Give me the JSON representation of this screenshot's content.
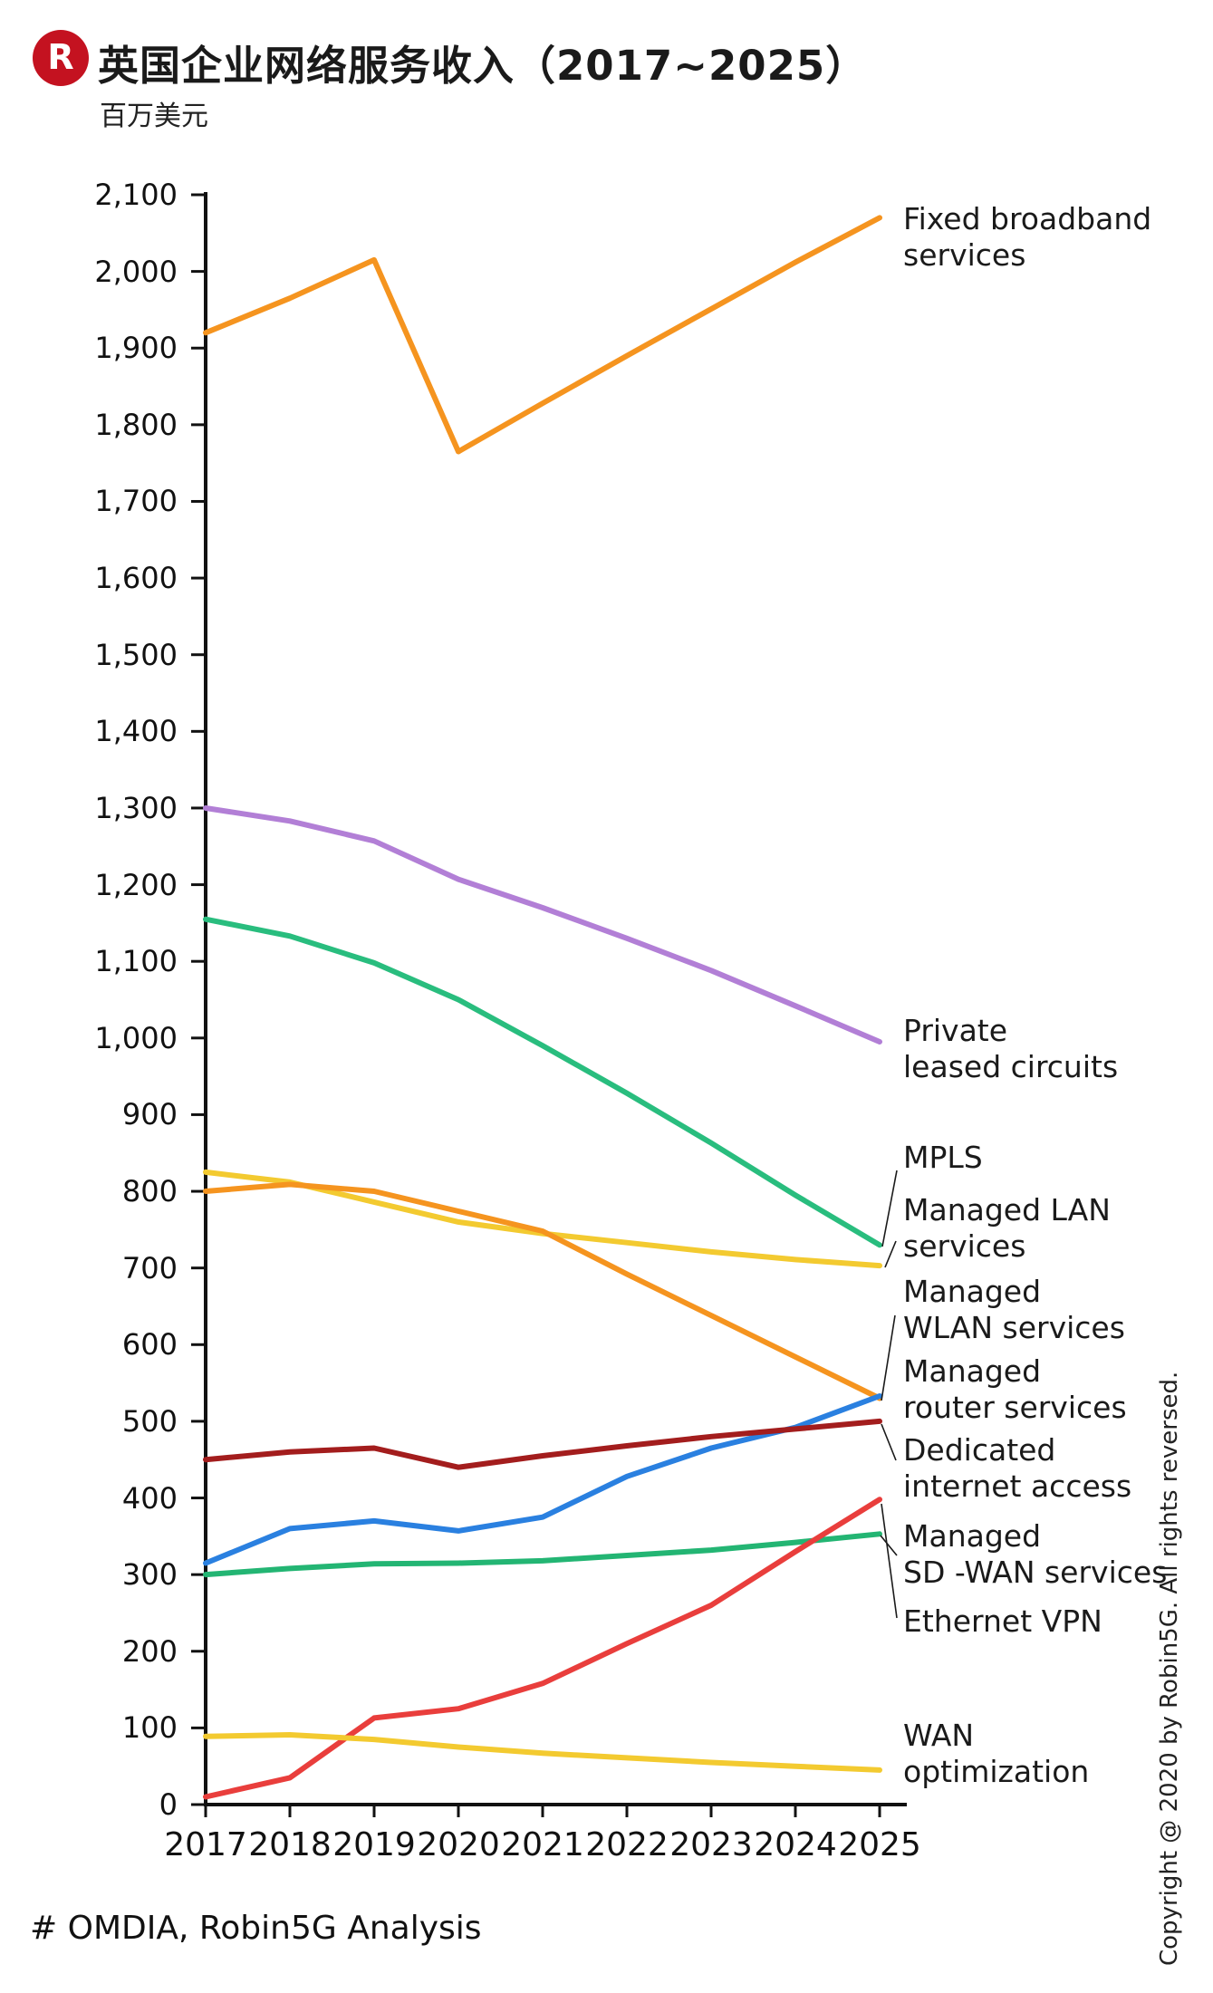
{
  "header": {
    "logo_letter": "R",
    "logo_color": "#C41220",
    "title": "英国企业网络服务收入（2017~2025）",
    "subtitle": "百万美元"
  },
  "source": "# OMDIA, Robin5G Analysis",
  "copyright": "Copyright @ 2020 by Robin5G. All rights reversed.",
  "chart_data": {
    "type": "line",
    "title": "英国企业网络服务收入（2017~2025）",
    "ylabel": "百万美元",
    "x": [
      2017,
      2018,
      2019,
      2020,
      2021,
      2022,
      2023,
      2024,
      2025
    ],
    "ylim": [
      0,
      2100
    ],
    "ytick_step": 100,
    "grid": false,
    "legend_position": "right-annotations",
    "axis_color": "#111111",
    "series": [
      {
        "name": "Fixed broadband services",
        "label_lines": [
          "Fixed broadband",
          "services"
        ],
        "color": "#F5941F",
        "values": [
          1920,
          1965,
          2015,
          1765,
          1828,
          1890,
          1951,
          2012,
          2070
        ],
        "label_top": 222
      },
      {
        "name": "Private leased circuits",
        "label_lines": [
          "Private",
          "leased circuits"
        ],
        "color": "#B27FD6",
        "values": [
          1300,
          1283,
          1257,
          1207,
          1170,
          1130,
          1088,
          1042,
          995
        ],
        "label_top": 1118
      },
      {
        "name": "MPLS",
        "label_lines": [
          "MPLS"
        ],
        "color": "#29BD7E",
        "values": [
          1155,
          1133,
          1098,
          1050,
          990,
          928,
          863,
          795,
          730
        ],
        "label_top": 1258,
        "leader": [
          [
            974,
            1376
          ],
          [
            990,
            1292
          ]
        ]
      },
      {
        "name": "Managed LAN services",
        "label_lines": [
          "Managed LAN",
          "services"
        ],
        "color": "#F3CA30",
        "values": [
          825,
          812,
          786,
          760,
          745,
          733,
          721,
          711,
          703
        ],
        "label_top": 1316,
        "leader": [
          [
            977,
            1399
          ],
          [
            989,
            1370
          ]
        ]
      },
      {
        "name": "Managed WLAN services",
        "label_lines": [
          "Managed",
          "WLAN services"
        ],
        "color": "#F5941F",
        "values": [
          800,
          809,
          800,
          774,
          748,
          692,
          638,
          584,
          530
        ],
        "label_top": 1406,
        "leader": [
          [
            973,
            1546
          ],
          [
            988,
            1452
          ]
        ]
      },
      {
        "name": "Managed router services",
        "label_lines": [
          "Managed",
          "router services"
        ],
        "color": "#2A80E0",
        "values": [
          315,
          360,
          370,
          357,
          375,
          428,
          465,
          492,
          533
        ],
        "label_top": 1494
      },
      {
        "name": "Dedicated internet access",
        "label_lines": [
          "Dedicated",
          "internet access"
        ],
        "color": "#A31D1D",
        "values": [
          450,
          460,
          465,
          440,
          455,
          468,
          480,
          490,
          500
        ],
        "label_top": 1581,
        "leader": [
          [
            973,
            1572
          ],
          [
            989,
            1612
          ]
        ]
      },
      {
        "name": "Managed SD -WAN services",
        "label_lines": [
          "Managed",
          "SD -WAN services"
        ],
        "color": "#23B573",
        "values": [
          300,
          308,
          314,
          315,
          318,
          325,
          332,
          342,
          353
        ],
        "label_top": 1676,
        "leader": [
          [
            972,
            1695
          ],
          [
            990,
            1717
          ]
        ]
      },
      {
        "name": "Ethernet VPN",
        "label_lines": [
          "Ethernet VPN"
        ],
        "color": "#E93E3C",
        "values": [
          10,
          35,
          113,
          125,
          158,
          210,
          260,
          330,
          398
        ],
        "label_top": 1770,
        "leader": [
          [
            973,
            1660
          ],
          [
            990,
            1786
          ]
        ]
      },
      {
        "name": "WAN optimization",
        "label_lines": [
          "WAN",
          "optimization"
        ],
        "color": "#F3CA30",
        "values": [
          89,
          91,
          85,
          75,
          67,
          61,
          55,
          50,
          45
        ],
        "label_top": 1896
      }
    ]
  }
}
